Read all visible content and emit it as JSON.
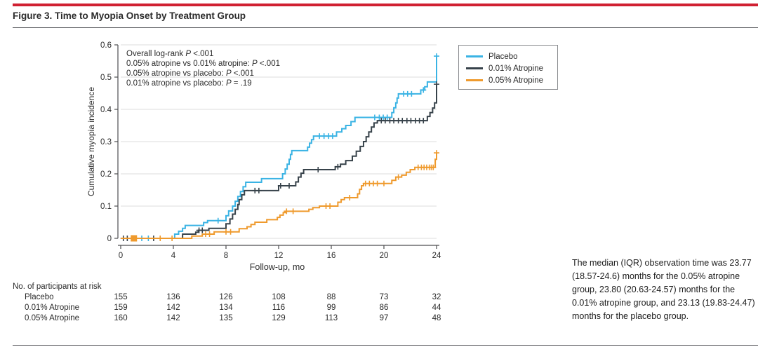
{
  "figure": {
    "title": "Figure 3. Time to Myopia Onset by Treatment Group",
    "accent_color": "#d02032"
  },
  "annotations": {
    "lines": [
      {
        "pre": "Overall log-rank ",
        "p": "P",
        "post": " <.001"
      },
      {
        "pre": "0.05% atropine vs 0.01% atropine: ",
        "p": "P",
        "post": " <.001"
      },
      {
        "pre": "0.05% atropine vs placebo: ",
        "p": "P",
        "post": " <.001"
      },
      {
        "pre": "0.01% atropine vs placebo: ",
        "p": "P",
        "post": " = .19"
      }
    ]
  },
  "chart_data": {
    "type": "line",
    "subtype": "kaplan-meier-step",
    "title": "",
    "xlabel": "Follow-up, mo",
    "ylabel": "Cumulative myopia incidence",
    "xlim": [
      0,
      24
    ],
    "ylim": [
      0,
      0.6
    ],
    "xticks": [
      "0",
      "4",
      "8",
      "12",
      "16",
      "20",
      "24"
    ],
    "yticks": [
      "0",
      "0.1",
      "0.2",
      "0.3",
      "0.4",
      "0.5",
      "0.6"
    ],
    "grid": true,
    "legend_position": "top-right",
    "series": [
      {
        "name": "Placebo",
        "color": "#3ab3e4",
        "points": [
          [
            0,
            0
          ],
          [
            4.1,
            0.013
          ],
          [
            4.4,
            0.022
          ],
          [
            4.7,
            0.031
          ],
          [
            4.9,
            0.04
          ],
          [
            6.3,
            0.049
          ],
          [
            6.6,
            0.055
          ],
          [
            8.0,
            0.07
          ],
          [
            8.2,
            0.085
          ],
          [
            8.5,
            0.1
          ],
          [
            8.7,
            0.115
          ],
          [
            8.9,
            0.13
          ],
          [
            9.1,
            0.145
          ],
          [
            9.3,
            0.16
          ],
          [
            9.5,
            0.174
          ],
          [
            10.7,
            0.185
          ],
          [
            12.3,
            0.2
          ],
          [
            12.5,
            0.215
          ],
          [
            12.65,
            0.23
          ],
          [
            12.8,
            0.245
          ],
          [
            12.9,
            0.26
          ],
          [
            13.0,
            0.272
          ],
          [
            14.2,
            0.283
          ],
          [
            14.35,
            0.295
          ],
          [
            14.5,
            0.306
          ],
          [
            14.65,
            0.317
          ],
          [
            16.4,
            0.33
          ],
          [
            16.8,
            0.34
          ],
          [
            17.1,
            0.35
          ],
          [
            17.5,
            0.362
          ],
          [
            17.8,
            0.375
          ],
          [
            20.6,
            0.39
          ],
          [
            20.75,
            0.405
          ],
          [
            20.9,
            0.42
          ],
          [
            21.0,
            0.435
          ],
          [
            21.1,
            0.448
          ],
          [
            22.8,
            0.46
          ],
          [
            23.1,
            0.47
          ],
          [
            23.3,
            0.485
          ],
          [
            24,
            0.565
          ]
        ],
        "censors": [
          [
            1.6,
            0
          ],
          [
            2.1,
            0
          ],
          [
            7.4,
            0.055
          ],
          [
            15.1,
            0.317
          ],
          [
            15.45,
            0.317
          ],
          [
            15.8,
            0.317
          ],
          [
            16.1,
            0.317
          ],
          [
            19.3,
            0.375
          ],
          [
            19.65,
            0.375
          ],
          [
            19.95,
            0.375
          ],
          [
            20.25,
            0.375
          ],
          [
            21.5,
            0.448
          ],
          [
            21.8,
            0.448
          ],
          [
            22.1,
            0.448
          ],
          [
            23.0,
            0.46
          ],
          [
            24,
            0.565
          ]
        ],
        "markers": []
      },
      {
        "name": "0.01% Atropine",
        "color": "#37424a",
        "points": [
          [
            0,
            0
          ],
          [
            4.7,
            0.013
          ],
          [
            5.7,
            0.019
          ],
          [
            5.9,
            0.025
          ],
          [
            6.7,
            0.031
          ],
          [
            8.0,
            0.045
          ],
          [
            8.3,
            0.06
          ],
          [
            8.5,
            0.075
          ],
          [
            8.7,
            0.09
          ],
          [
            8.9,
            0.105
          ],
          [
            9.0,
            0.12
          ],
          [
            9.2,
            0.135
          ],
          [
            9.4,
            0.148
          ],
          [
            12.0,
            0.163
          ],
          [
            13.3,
            0.175
          ],
          [
            13.5,
            0.19
          ],
          [
            13.7,
            0.202
          ],
          [
            13.9,
            0.213
          ],
          [
            16.3,
            0.222
          ],
          [
            16.7,
            0.23
          ],
          [
            17.1,
            0.241
          ],
          [
            17.6,
            0.255
          ],
          [
            17.9,
            0.27
          ],
          [
            18.2,
            0.285
          ],
          [
            18.45,
            0.3
          ],
          [
            18.65,
            0.315
          ],
          [
            18.85,
            0.33
          ],
          [
            19.05,
            0.345
          ],
          [
            19.25,
            0.358
          ],
          [
            19.5,
            0.365
          ],
          [
            23.3,
            0.378
          ],
          [
            23.5,
            0.39
          ],
          [
            23.7,
            0.404
          ],
          [
            23.85,
            0.42
          ],
          [
            24,
            0.478
          ]
        ],
        "censors": [
          [
            0.2,
            0
          ],
          [
            0.5,
            0
          ],
          [
            2.5,
            0
          ],
          [
            5.95,
            0.025
          ],
          [
            6.2,
            0.025
          ],
          [
            10.2,
            0.148
          ],
          [
            10.5,
            0.148
          ],
          [
            12.15,
            0.163
          ],
          [
            12.8,
            0.163
          ],
          [
            15.0,
            0.213
          ],
          [
            16.5,
            0.222
          ],
          [
            19.8,
            0.365
          ],
          [
            20.1,
            0.365
          ],
          [
            20.45,
            0.365
          ],
          [
            20.75,
            0.365
          ],
          [
            21.1,
            0.365
          ],
          [
            21.4,
            0.365
          ],
          [
            21.75,
            0.365
          ],
          [
            22.05,
            0.365
          ],
          [
            22.4,
            0.365
          ],
          [
            22.7,
            0.365
          ],
          [
            23.0,
            0.365
          ],
          [
            24,
            0.478
          ]
        ],
        "markers": []
      },
      {
        "name": "0.05% Atropine",
        "color": "#ef9a2d",
        "points": [
          [
            0,
            0
          ],
          [
            5.4,
            0.007
          ],
          [
            6.2,
            0.013
          ],
          [
            7.1,
            0.02
          ],
          [
            9.0,
            0.03
          ],
          [
            9.6,
            0.036
          ],
          [
            9.9,
            0.043
          ],
          [
            10.2,
            0.05
          ],
          [
            11.1,
            0.058
          ],
          [
            11.9,
            0.065
          ],
          [
            12.1,
            0.072
          ],
          [
            12.35,
            0.08
          ],
          [
            12.5,
            0.084
          ],
          [
            14.3,
            0.09
          ],
          [
            14.6,
            0.095
          ],
          [
            15.1,
            0.1
          ],
          [
            16.5,
            0.112
          ],
          [
            16.75,
            0.12
          ],
          [
            17.0,
            0.126
          ],
          [
            18.0,
            0.138
          ],
          [
            18.15,
            0.152
          ],
          [
            18.3,
            0.163
          ],
          [
            18.45,
            0.17
          ],
          [
            20.6,
            0.18
          ],
          [
            20.9,
            0.19
          ],
          [
            21.35,
            0.196
          ],
          [
            21.7,
            0.205
          ],
          [
            22.0,
            0.213
          ],
          [
            22.35,
            0.22
          ],
          [
            23.9,
            0.245
          ],
          [
            24,
            0.265
          ]
        ],
        "censors": [
          [
            3.0,
            0
          ],
          [
            3.9,
            0
          ],
          [
            6.45,
            0.013
          ],
          [
            6.75,
            0.013
          ],
          [
            8.0,
            0.02
          ],
          [
            8.35,
            0.02
          ],
          [
            12.6,
            0.084
          ],
          [
            13.1,
            0.084
          ],
          [
            15.6,
            0.1
          ],
          [
            15.9,
            0.1
          ],
          [
            17.4,
            0.126
          ],
          [
            18.6,
            0.17
          ],
          [
            18.9,
            0.17
          ],
          [
            19.2,
            0.17
          ],
          [
            19.5,
            0.17
          ],
          [
            20.0,
            0.17
          ],
          [
            21.1,
            0.19
          ],
          [
            22.6,
            0.22
          ],
          [
            22.85,
            0.22
          ],
          [
            23.05,
            0.22
          ],
          [
            23.25,
            0.22
          ],
          [
            23.45,
            0.22
          ],
          [
            23.6,
            0.22
          ],
          [
            23.75,
            0.22
          ],
          [
            24,
            0.265
          ]
        ],
        "markers": [
          {
            "type": "square",
            "at": [
              1.0,
              0
            ]
          }
        ]
      }
    ]
  },
  "risk_table": {
    "title": "No. of participants at risk",
    "months": [
      0,
      4,
      8,
      12,
      16,
      20,
      24
    ],
    "rows": [
      {
        "label": "Placebo",
        "values": [
          "155",
          "136",
          "126",
          "108",
          "88",
          "73",
          "32"
        ]
      },
      {
        "label": "0.01% Atropine",
        "values": [
          "159",
          "142",
          "134",
          "116",
          "99",
          "86",
          "44"
        ]
      },
      {
        "label": "0.05% Atropine",
        "values": [
          "160",
          "142",
          "135",
          "129",
          "113",
          "97",
          "48"
        ]
      }
    ]
  },
  "footnote": {
    "text": "The median (IQR) observation time was 23.77 (18.57-24.6) months for the 0.05% atropine group, 23.80 (20.63-24.57) months for the 0.01% atropine group, and 23.13 (19.83-24.47) months for the placebo group."
  }
}
